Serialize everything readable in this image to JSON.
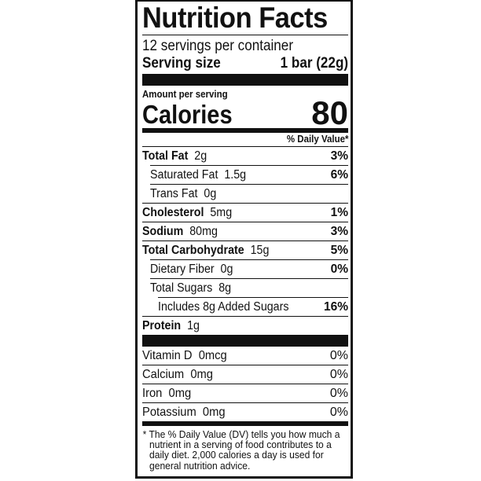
{
  "title": "Nutrition Facts",
  "servings_per_container": "12 servings per container",
  "serving_size": {
    "label": "Serving size",
    "value": "1 bar (22g)"
  },
  "amount_per_serving": "Amount per serving",
  "calories": {
    "label": "Calories",
    "value": "80"
  },
  "daily_value_header": "% Daily Value*",
  "nutrients": [
    {
      "name": "Total Fat",
      "amount": "2g",
      "dv": "3%",
      "bold": true,
      "indent": 0
    },
    {
      "name": "Saturated Fat",
      "amount": "1.5g",
      "dv": "6%",
      "bold": false,
      "indent": 1
    },
    {
      "name": "Trans Fat",
      "amount": "0g",
      "dv": "",
      "bold": false,
      "indent": 1
    },
    {
      "name": "Cholesterol",
      "amount": "5mg",
      "dv": "1%",
      "bold": true,
      "indent": 0
    },
    {
      "name": "Sodium",
      "amount": "80mg",
      "dv": "3%",
      "bold": true,
      "indent": 0
    },
    {
      "name": "Total Carbohydrate",
      "amount": "15g",
      "dv": "5%",
      "bold": true,
      "indent": 0
    },
    {
      "name": "Dietary Fiber",
      "amount": "0g",
      "dv": "0%",
      "bold": false,
      "indent": 1
    },
    {
      "name": "Total Sugars",
      "amount": "8g",
      "dv": "",
      "bold": false,
      "indent": 1
    },
    {
      "name": "Includes 8g Added Sugars",
      "amount": "",
      "dv": "16%",
      "bold": false,
      "indent": 2
    },
    {
      "name": "Protein",
      "amount": "1g",
      "dv": "",
      "bold": true,
      "indent": 0
    }
  ],
  "vitamins": [
    {
      "name": "Vitamin D",
      "amount": "0mcg",
      "dv": "0%"
    },
    {
      "name": "Calcium",
      "amount": "0mg",
      "dv": "0%"
    },
    {
      "name": "Iron",
      "amount": "0mg",
      "dv": "0%"
    },
    {
      "name": "Potassium",
      "amount": "0mg",
      "dv": "0%"
    }
  ],
  "footnote": "* The % Daily Value (DV) tells you how much a nutrient in a serving of food contributes to a daily diet. 2,000 calories a day is used for general nutrition advice."
}
